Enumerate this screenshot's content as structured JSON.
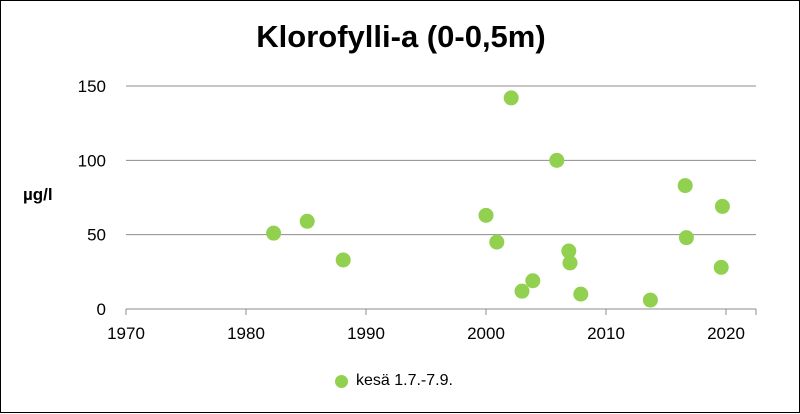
{
  "chart_data": {
    "type": "scatter",
    "title": "Klorofylli-a (0-0,5m)",
    "xlabel": "",
    "ylabel": "µg/l",
    "xlim": [
      1970,
      2022
    ],
    "ylim": [
      0,
      150
    ],
    "xticks": [
      1970,
      1980,
      1990,
      2000,
      2010,
      2020
    ],
    "yticks": [
      0,
      50,
      100,
      150
    ],
    "grid": "horizontal",
    "legend_position": "bottom",
    "series": [
      {
        "name": "kesä 1.7.-7.9.",
        "color": "#92d050",
        "points": [
          {
            "x": 1982.3,
            "y": 51
          },
          {
            "x": 1985.1,
            "y": 59
          },
          {
            "x": 1988.1,
            "y": 33
          },
          {
            "x": 2000.0,
            "y": 63
          },
          {
            "x": 2000.9,
            "y": 45
          },
          {
            "x": 2002.1,
            "y": 142
          },
          {
            "x": 2003.0,
            "y": 12
          },
          {
            "x": 2003.9,
            "y": 19
          },
          {
            "x": 2005.9,
            "y": 100
          },
          {
            "x": 2006.9,
            "y": 39
          },
          {
            "x": 2007.0,
            "y": 31
          },
          {
            "x": 2007.9,
            "y": 10
          },
          {
            "x": 2013.7,
            "y": 6
          },
          {
            "x": 2016.6,
            "y": 83
          },
          {
            "x": 2016.7,
            "y": 48
          },
          {
            "x": 2019.6,
            "y": 28
          },
          {
            "x": 2019.7,
            "y": 69
          }
        ]
      }
    ]
  }
}
